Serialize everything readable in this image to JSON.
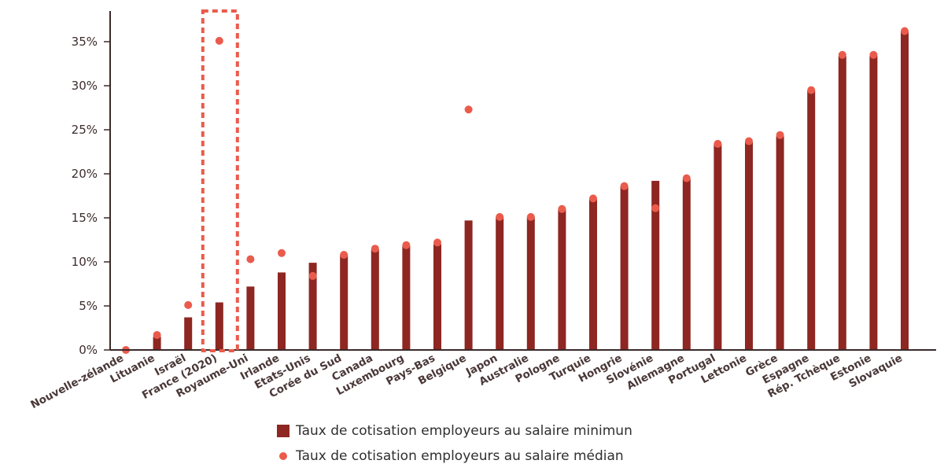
{
  "chart_data": {
    "type": "bar",
    "categories": [
      "Nouvelle-zélande",
      "Lituanie",
      "Israël",
      "France (2020)",
      "Royaume-Uni",
      "Irlande",
      "Etats-Unis",
      "Corée du Sud",
      "Canada",
      "Luxembourg",
      "Pays-Bas",
      "Belgique",
      "Japon",
      "Australie",
      "Pologne",
      "Turquie",
      "Hongrie",
      "Slovénie",
      "Allemagne",
      "Portugal",
      "Lettonie",
      "Grèce",
      "Espagne",
      "Rép. Tchèque",
      "Estonie",
      "Slovaquie"
    ],
    "series": [
      {
        "name": "Taux de cotisation employeurs au salaire minimun",
        "kind": "bar",
        "values": [
          0,
          1.5,
          3.7,
          5.4,
          7.2,
          8.8,
          9.9,
          10.8,
          11.4,
          11.8,
          12.0,
          14.7,
          15.1,
          15.1,
          16.0,
          17.1,
          18.6,
          19.2,
          19.4,
          23.4,
          23.6,
          24.3,
          29.5,
          33.4,
          33.4,
          36.2
        ],
        "color": "#8e2622"
      },
      {
        "name": "Taux de cotisation employeurs au salaire médian",
        "kind": "dot",
        "values": [
          0,
          1.7,
          5.1,
          35.1,
          10.3,
          11.0,
          8.4,
          10.8,
          11.5,
          11.9,
          12.2,
          27.3,
          15.1,
          15.1,
          16.0,
          17.2,
          18.6,
          16.1,
          19.5,
          23.4,
          23.7,
          24.4,
          29.5,
          33.5,
          33.5,
          36.2
        ],
        "color": "#ea5b4c"
      }
    ],
    "yticks": [
      "0%",
      "5%",
      "10%",
      "15%",
      "20%",
      "25%",
      "30%",
      "35%"
    ],
    "ylim": [
      0,
      36.5
    ],
    "grid": false,
    "legend_placement": "bottom-center",
    "highlight_category": "France (2020)"
  }
}
